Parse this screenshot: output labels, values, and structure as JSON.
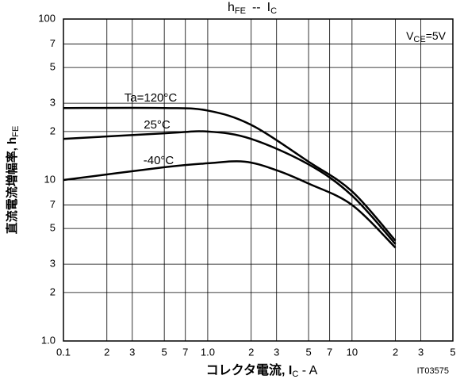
{
  "chart_data": {
    "type": "line",
    "title": [
      "h",
      "FE",
      "--",
      "I",
      "C"
    ],
    "y_label": [
      "直流電流増幅率, h",
      "FE"
    ],
    "x_label": [
      "コレクタ電流, I",
      "C",
      " - A"
    ],
    "annotation": [
      "V",
      "CE",
      "=5V"
    ],
    "figure_id": "IT03575",
    "log_x": true,
    "log_y": true,
    "grid": true,
    "xlim": [
      0.1,
      50
    ],
    "ylim": [
      1,
      100
    ],
    "xticks": [
      0.1,
      {
        "value": 0.2,
        "label": "2"
      },
      {
        "value": 0.3,
        "label": "3"
      },
      {
        "value": 0.5,
        "label": "5"
      },
      {
        "value": 0.7,
        "label": "7"
      },
      {
        "value": 1,
        "label": "1.0"
      },
      {
        "value": 2,
        "label": "2"
      },
      {
        "value": 3,
        "label": "3"
      },
      {
        "value": 5,
        "label": "5"
      },
      {
        "value": 7,
        "label": "7"
      },
      10,
      {
        "value": 20,
        "label": "2"
      },
      {
        "value": 30,
        "label": "3"
      },
      {
        "value": 50,
        "label": "5"
      }
    ],
    "yticks": [
      {
        "value": 1,
        "label": "1.0"
      },
      2,
      3,
      5,
      7,
      10,
      {
        "value": 20,
        "label": "2"
      },
      {
        "value": 30,
        "label": "3"
      },
      {
        "value": 50,
        "label": "5"
      },
      {
        "value": 70,
        "label": "7"
      },
      100
    ],
    "series": [
      {
        "name": "Ta=120°C",
        "color": "#000000",
        "x": [
          0.1,
          0.5,
          1,
          2,
          5,
          10,
          20
        ],
        "values": [
          28,
          28,
          27,
          22,
          13,
          8.5,
          4.2
        ]
      },
      {
        "name": "25°C",
        "color": "#000000",
        "x": [
          0.1,
          0.5,
          1,
          2,
          5,
          10,
          20
        ],
        "values": [
          18,
          19.5,
          20,
          18,
          12.5,
          8,
          4
        ]
      },
      {
        "name": "-40°C",
        "color": "#000000",
        "x": [
          0.1,
          0.5,
          1,
          1.8,
          3,
          5,
          10,
          20
        ],
        "values": [
          10,
          12,
          12.7,
          13,
          11.5,
          9.5,
          7,
          3.8
        ]
      }
    ]
  }
}
